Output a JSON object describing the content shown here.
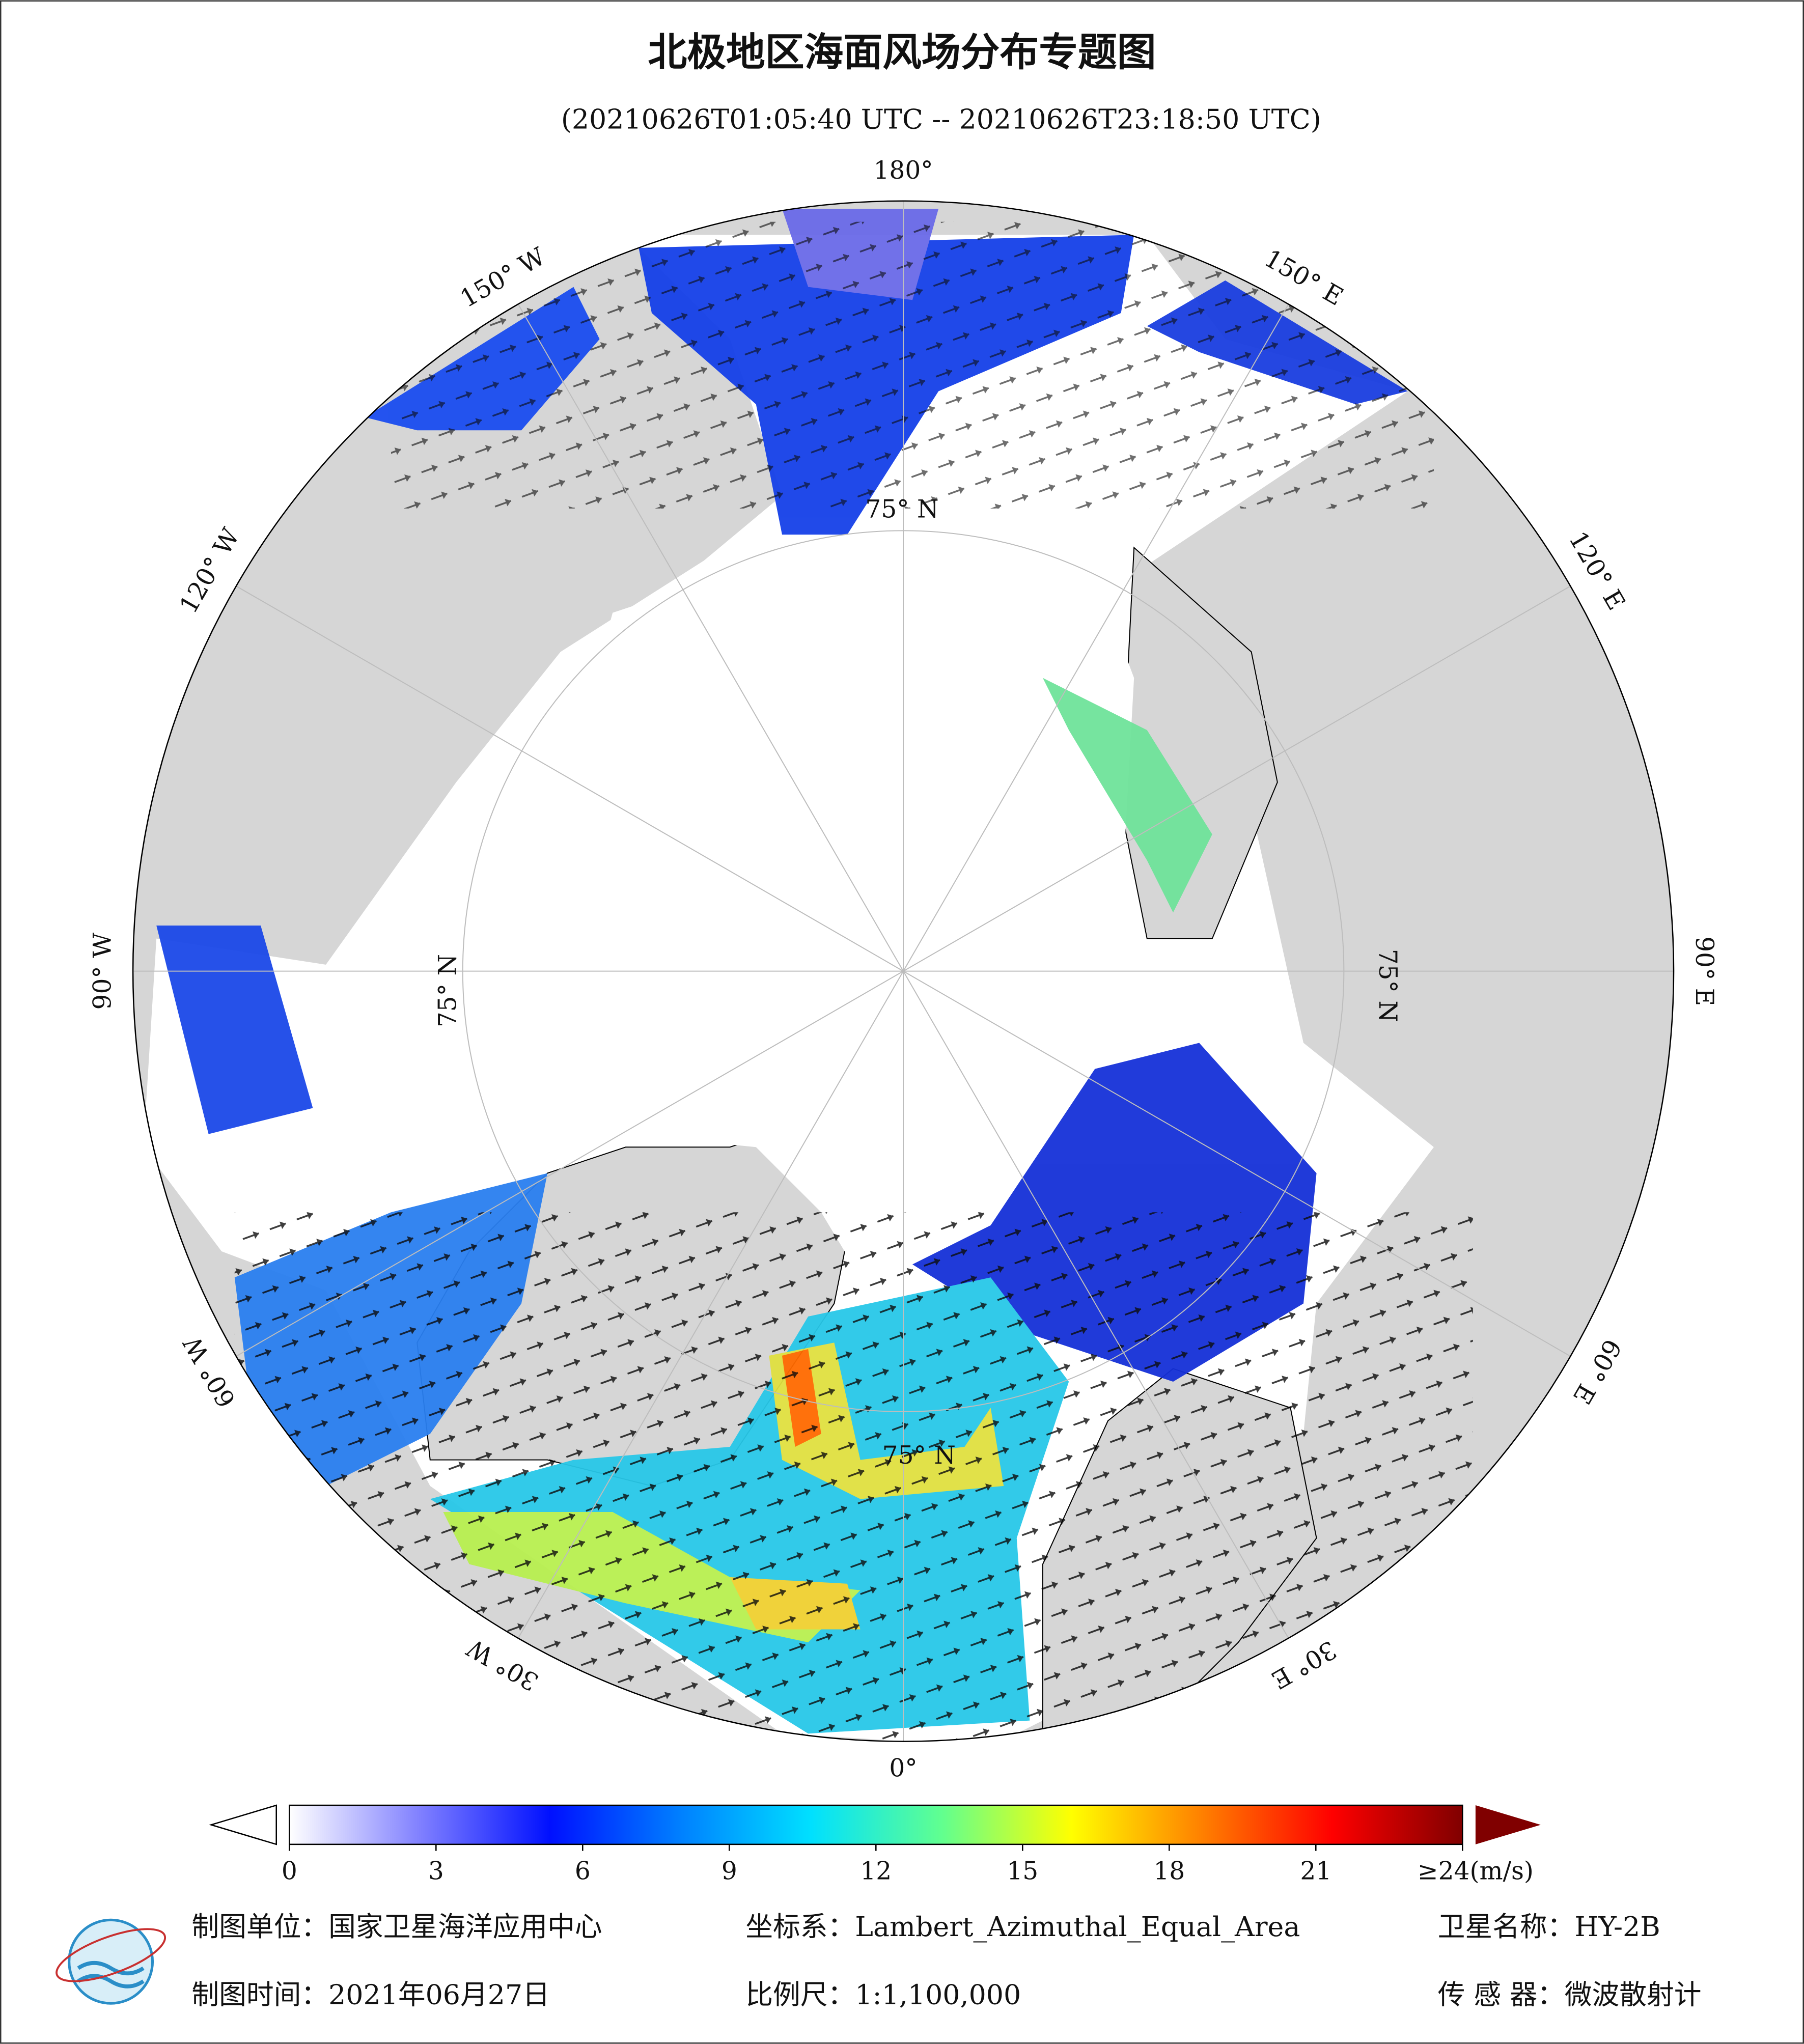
{
  "header": {
    "title": "北极地区海面风场分布专题图",
    "subtitle": "(20210626T01:05:40 UTC -- 20210626T23:18:50 UTC)"
  },
  "map": {
    "lon_ticks": [
      {
        "value": 180,
        "label": "180°"
      },
      {
        "value": 150,
        "label": "150° E"
      },
      {
        "value": 120,
        "label": "120° E"
      },
      {
        "value": 90,
        "label": "90° E"
      },
      {
        "value": 60,
        "label": "60° E"
      },
      {
        "value": 30,
        "label": "30° E"
      },
      {
        "value": 0,
        "label": "0°"
      },
      {
        "value": -30,
        "label": "30° W"
      },
      {
        "value": -60,
        "label": "60° W"
      },
      {
        "value": -90,
        "label": "90° W"
      },
      {
        "value": -120,
        "label": "120° W"
      },
      {
        "value": -150,
        "label": "150° W"
      }
    ],
    "lat_labels": [
      "75° N",
      "75° N",
      "75° N",
      "75° N"
    ]
  },
  "colorbar": {
    "lim": [
      0,
      24
    ],
    "ticks": [
      0,
      3,
      6,
      9,
      12,
      15,
      18,
      21,
      {
        "value": 24,
        "label": "≥24(m/s)"
      }
    ],
    "colors": [
      "#ffffff",
      "#8080ff",
      "#0010ff",
      "#0080ff",
      "#00e0ff",
      "#60ff90",
      "#ffff00",
      "#ff8000",
      "#ff0000",
      "#800000"
    ]
  },
  "footer": {
    "unit": "制图单位：国家卫星海洋应用中心",
    "crs": "坐标系：Lambert_Azimuthal_Equal_Area",
    "satellite": "卫星名称：HY-2B",
    "date": "制图时间：2021年06月27日",
    "scale": "比例尺：1:1,100,000",
    "sensor": "传 感 器：微波散射计"
  }
}
